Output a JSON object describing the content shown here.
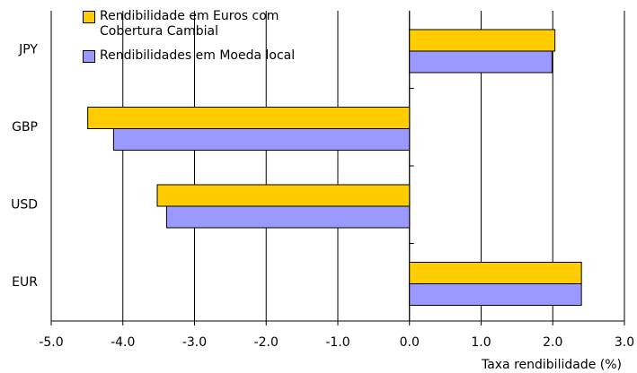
{
  "chart_data": {
    "type": "barh",
    "categories": [
      "JPY",
      "GBP",
      "USD",
      "EUR"
    ],
    "series": [
      {
        "name": "Rendibilidade em Euros com Cobertura Cambial",
        "color": "#ffcc00",
        "values": [
          2.03,
          -4.49,
          -3.52,
          2.4
        ]
      },
      {
        "name": "Rendibilidades em Moeda local",
        "color": "#9999ff",
        "values": [
          1.99,
          -4.13,
          -3.39,
          2.4
        ]
      }
    ],
    "xlabel": "Taxa rendibilidade (%)",
    "xlim": [
      -5,
      3
    ],
    "xticks": [
      {
        "value": -5,
        "label": "-5.0"
      },
      {
        "value": -4,
        "label": "-4.0"
      },
      {
        "value": -3,
        "label": "-3.0"
      },
      {
        "value": -2,
        "label": "-2.0"
      },
      {
        "value": -1,
        "label": "-1.0"
      },
      {
        "value": 0,
        "label": "0.0"
      },
      {
        "value": 1,
        "label": "1.0"
      },
      {
        "value": 2,
        "label": "2.0"
      },
      {
        "value": 3,
        "label": "3.0"
      }
    ],
    "grid": true,
    "legend": "upper left"
  }
}
